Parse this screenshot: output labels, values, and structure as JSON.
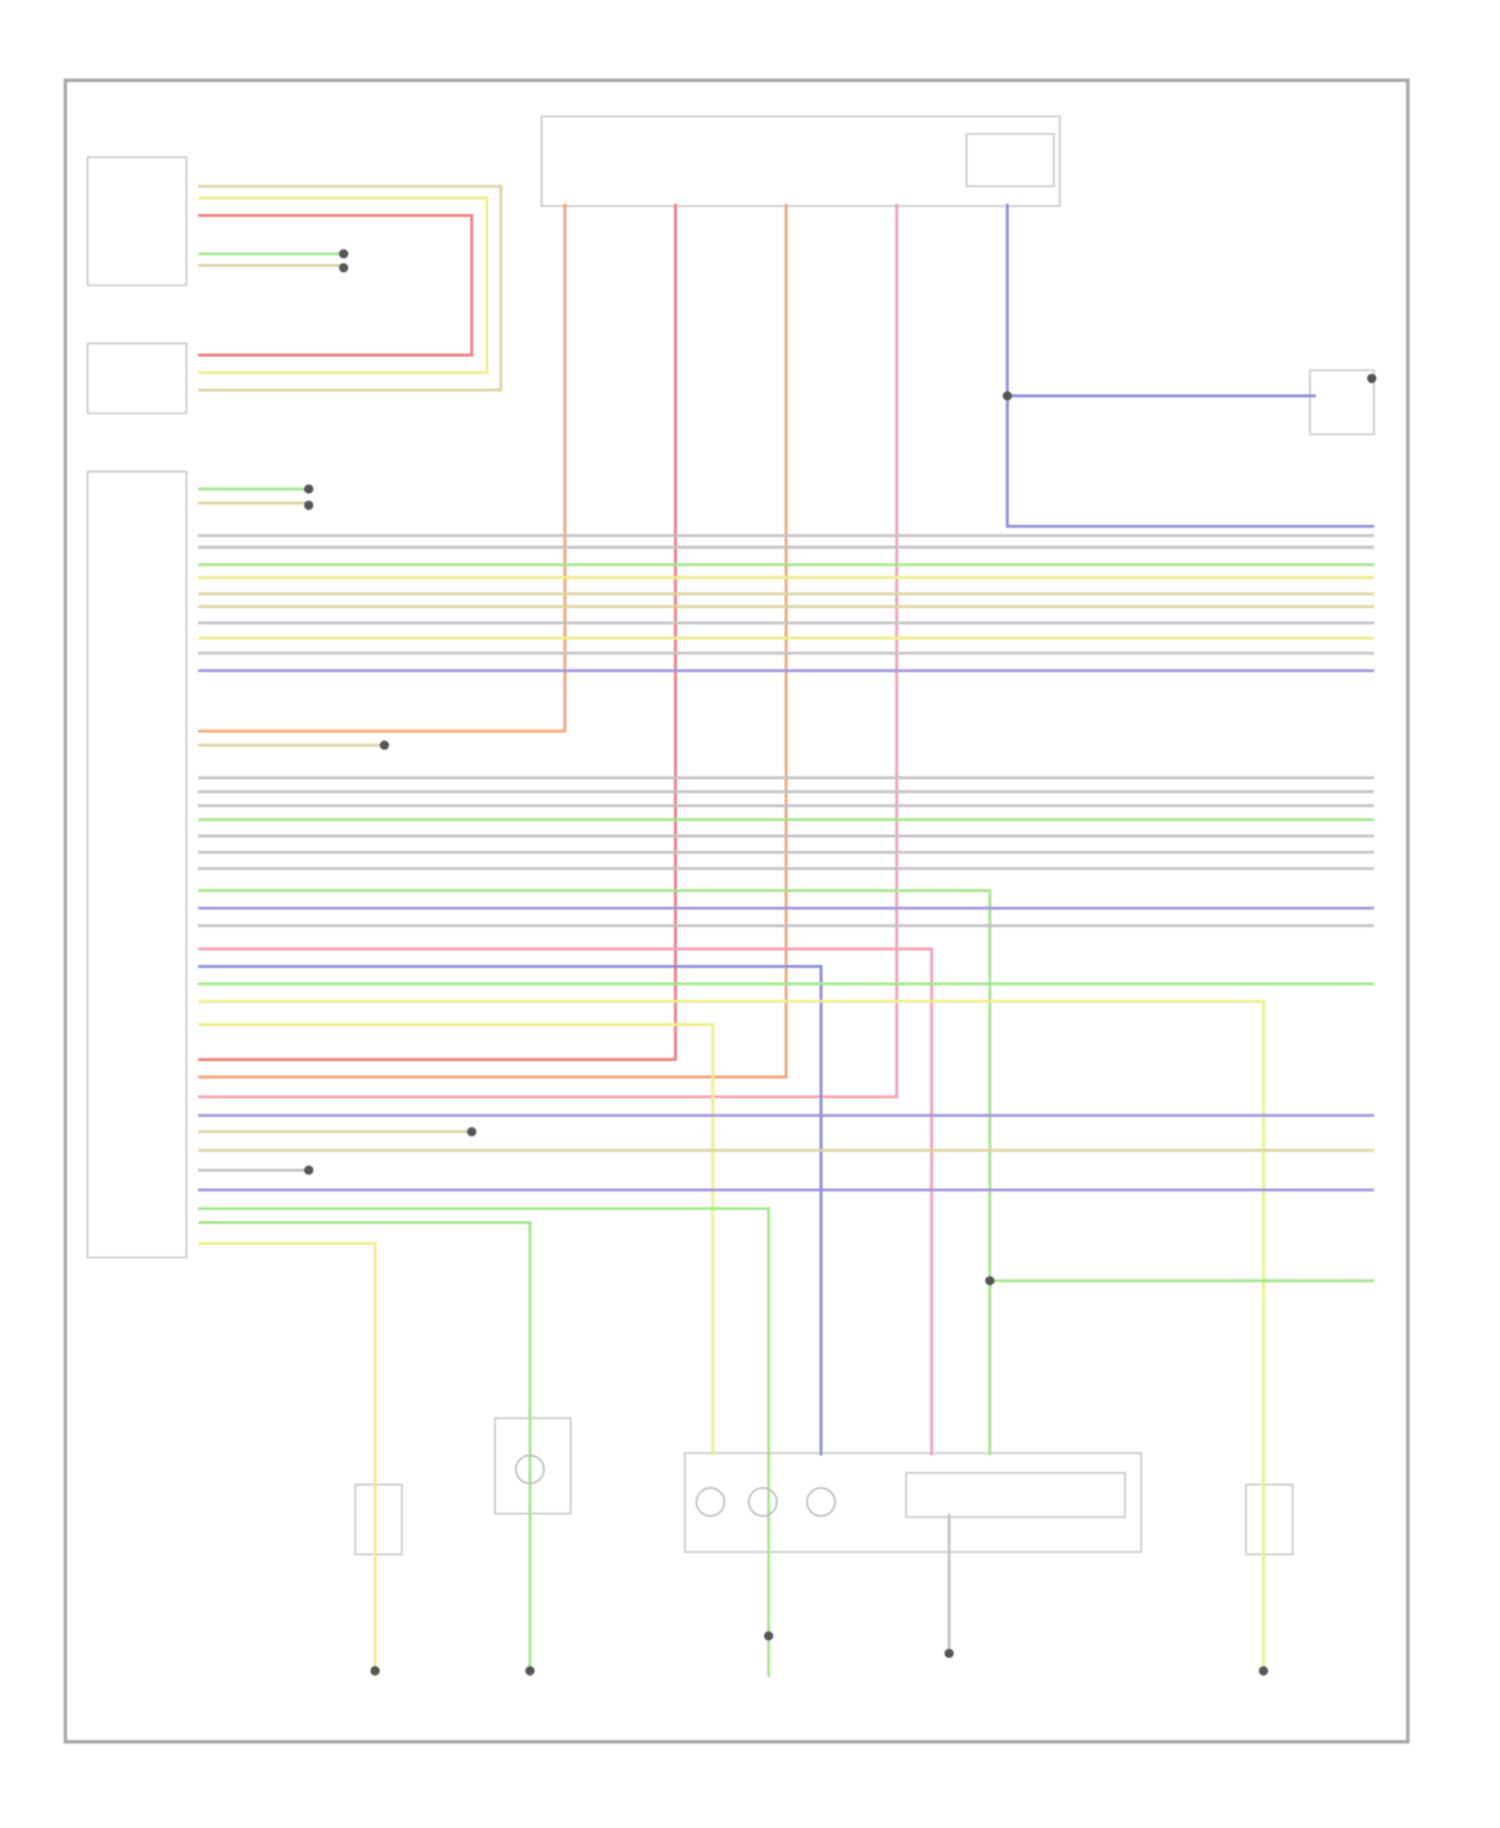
{
  "diagram": {
    "wire_colors": {
      "orange": "#f3a47c",
      "red": "#f07c7c",
      "pink": "#f5a0b4",
      "blue": "#8a90d8",
      "green": "#a6e68e",
      "yellow": "#eeee8c",
      "tan": "#ddd4a4",
      "gray": "#c4c4c4",
      "purple": "#a596de",
      "frame": "#a8a8a8"
    }
  }
}
